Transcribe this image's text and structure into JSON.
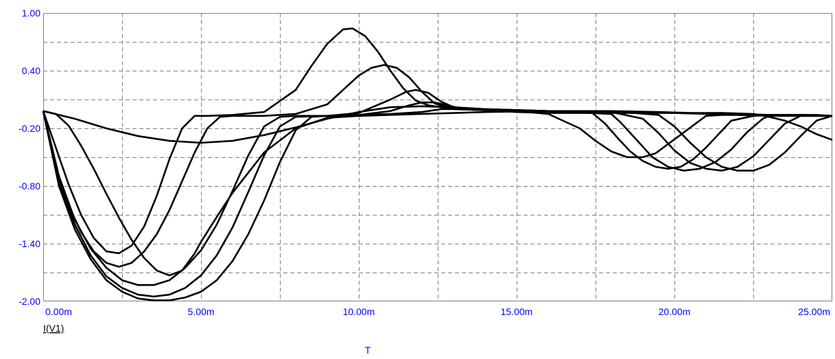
{
  "chart_data": {
    "type": "line",
    "ylabel": "I(V1)",
    "xlabel": "T",
    "xlim": [
      0,
      25
    ],
    "ylim": [
      -2.0,
      1.0
    ],
    "x_unit": "m",
    "x_ticks": [
      0,
      5,
      10,
      15,
      20,
      25
    ],
    "x_tick_labels": [
      "0.00m",
      "5.00m",
      "10.00m",
      "15.00m",
      "20.00m",
      "25.00m"
    ],
    "x_minor_ticks": [
      2.5,
      7.5,
      12.5,
      17.5,
      22.5
    ],
    "y_ticks": [
      1.0,
      0.4,
      -0.2,
      -0.8,
      -1.4,
      -2.0
    ],
    "y_tick_labels": [
      "1.00",
      "0.40",
      "-0.20",
      "-0.80",
      "-1.40",
      "-2.00"
    ],
    "y_minor_ticks": [
      0.7,
      0.1,
      -0.5,
      -1.1,
      -1.7
    ],
    "grid": true,
    "series": [
      {
        "x": [
          0,
          0.4,
          0.8,
          1.2,
          1.6,
          2.0,
          2.4,
          2.8,
          3.2,
          3.6,
          4.0,
          4.4,
          4.8,
          5.2,
          6,
          7,
          8,
          8.5,
          9.0,
          9.5,
          9.8,
          10.2,
          10.6,
          11.0,
          11.4,
          11.8,
          12.2,
          12.6,
          13,
          14,
          15,
          16,
          17,
          17.5,
          18,
          18.5,
          19,
          19.4,
          21,
          21.5,
          22,
          23,
          24,
          25
        ],
        "values": [
          -0.02,
          -0.4,
          -0.78,
          -1.1,
          -1.34,
          -1.48,
          -1.5,
          -1.42,
          -1.22,
          -0.9,
          -0.52,
          -0.2,
          -0.07,
          -0.07,
          -0.06,
          -0.03,
          0.2,
          0.45,
          0.68,
          0.83,
          0.84,
          0.76,
          0.6,
          0.4,
          0.22,
          0.09,
          0.04,
          0.02,
          0.0,
          -0.01,
          -0.02,
          -0.05,
          -0.2,
          -0.33,
          -0.44,
          -0.5,
          -0.5,
          -0.46,
          -0.07,
          -0.06,
          -0.06,
          -0.07,
          -0.07,
          -0.07
        ]
      },
      {
        "x": [
          0,
          0.4,
          0.8,
          1.2,
          1.6,
          2.0,
          2.4,
          2.8,
          3.2,
          3.6,
          4.0,
          4.4,
          4.8,
          5.2,
          5.6,
          6.0,
          6.4,
          7,
          8,
          9,
          10,
          10.4,
          10.8,
          11.2,
          11.6,
          12,
          12.4,
          12.8,
          14,
          16,
          17.4,
          17.8,
          18.2,
          18.6,
          19.0,
          19.4,
          19.8,
          20.2,
          20.6,
          21.0,
          21.8,
          22.5,
          23,
          24,
          25
        ],
        "values": [
          -0.02,
          -0.6,
          -1.0,
          -1.28,
          -1.48,
          -1.6,
          -1.64,
          -1.6,
          -1.48,
          -1.3,
          -1.05,
          -0.75,
          -0.45,
          -0.2,
          -0.08,
          -0.07,
          -0.07,
          -0.07,
          -0.05,
          0.05,
          0.35,
          0.43,
          0.46,
          0.43,
          0.33,
          0.18,
          0.06,
          0.02,
          0.0,
          -0.02,
          -0.04,
          -0.15,
          -0.3,
          -0.44,
          -0.54,
          -0.6,
          -0.62,
          -0.6,
          -0.52,
          -0.4,
          -0.12,
          -0.07,
          -0.06,
          -0.06,
          -0.07
        ]
      },
      {
        "x": [
          0,
          0.5,
          1.0,
          1.5,
          2.0,
          2.5,
          3.0,
          3.5,
          4.0,
          4.5,
          5.0,
          5.5,
          6.0,
          6.5,
          7.0,
          7.5,
          8,
          9,
          10,
          11,
          11.5,
          11.8,
          12.2,
          12.6,
          13,
          14,
          16,
          18,
          18.3,
          18.8,
          19.3,
          19.8,
          20.3,
          20.8,
          21.3,
          21.8,
          22.3,
          22.8,
          23,
          24,
          25
        ],
        "values": [
          -0.02,
          -0.7,
          -1.15,
          -1.45,
          -1.65,
          -1.78,
          -1.83,
          -1.83,
          -1.78,
          -1.65,
          -1.47,
          -1.2,
          -0.85,
          -0.48,
          -0.18,
          -0.08,
          -0.07,
          -0.07,
          -0.04,
          0.1,
          0.18,
          0.2,
          0.17,
          0.08,
          0.02,
          0.0,
          -0.02,
          -0.05,
          -0.14,
          -0.32,
          -0.5,
          -0.6,
          -0.64,
          -0.62,
          -0.55,
          -0.42,
          -0.24,
          -0.1,
          -0.07,
          -0.06,
          -0.07
        ]
      },
      {
        "x": [
          0,
          0.5,
          1.0,
          1.5,
          2.0,
          2.5,
          3.0,
          3.5,
          4.0,
          4.5,
          5.0,
          5.5,
          6.0,
          6.5,
          7.0,
          7.5,
          8.0,
          9,
          10,
          11,
          11.6,
          12.0,
          12.4,
          12.8,
          13.2,
          14,
          16,
          18,
          19,
          19.5,
          20.0,
          20.5,
          21.0,
          21.5,
          22.0,
          22.5,
          23.0,
          23.5,
          24.0,
          25
        ],
        "values": [
          -0.02,
          -0.75,
          -1.2,
          -1.52,
          -1.74,
          -1.86,
          -1.93,
          -1.95,
          -1.93,
          -1.86,
          -1.73,
          -1.52,
          -1.23,
          -0.86,
          -0.48,
          -0.18,
          -0.08,
          -0.07,
          -0.06,
          -0.02,
          0.04,
          0.07,
          0.07,
          0.04,
          0.01,
          0.0,
          -0.02,
          -0.03,
          -0.1,
          -0.25,
          -0.43,
          -0.56,
          -0.62,
          -0.64,
          -0.6,
          -0.49,
          -0.32,
          -0.15,
          -0.07,
          -0.07
        ]
      },
      {
        "x": [
          0,
          0.5,
          1.0,
          1.5,
          2.0,
          2.5,
          3.0,
          3.5,
          4.0,
          4.5,
          5.0,
          5.5,
          6.0,
          6.5,
          7.0,
          7.5,
          8.0,
          8.5,
          9,
          10,
          11,
          12,
          12.6,
          13,
          14,
          16,
          18,
          19.5,
          20,
          20.5,
          21,
          21.5,
          22,
          22.5,
          23,
          23.5,
          24,
          24.5,
          25
        ],
        "values": [
          -0.02,
          -0.8,
          -1.25,
          -1.56,
          -1.78,
          -1.9,
          -1.97,
          -1.99,
          -1.99,
          -1.96,
          -1.9,
          -1.78,
          -1.58,
          -1.3,
          -0.95,
          -0.55,
          -0.22,
          -0.08,
          -0.07,
          -0.06,
          -0.05,
          -0.03,
          0.0,
          0.0,
          -0.01,
          -0.02,
          -0.02,
          -0.06,
          -0.18,
          -0.35,
          -0.5,
          -0.6,
          -0.64,
          -0.64,
          -0.58,
          -0.45,
          -0.28,
          -0.12,
          -0.07
        ]
      },
      {
        "x": [
          0,
          0.4,
          0.8,
          1.2,
          1.6,
          2.0,
          2.4,
          2.8,
          3.2,
          3.6,
          4.0,
          4.4,
          4.8,
          5.0,
          5.6,
          6.0,
          7,
          8,
          9,
          10,
          12,
          14,
          16,
          18,
          19.5,
          20.5,
          21.5,
          22.5,
          23.0,
          23.5,
          24.0,
          24.5,
          25
        ],
        "values": [
          -0.02,
          -0.05,
          -0.17,
          -0.38,
          -0.62,
          -0.88,
          -1.13,
          -1.36,
          -1.55,
          -1.68,
          -1.73,
          -1.68,
          -1.5,
          -1.38,
          -1.07,
          -0.87,
          -0.45,
          -0.2,
          -0.09,
          -0.07,
          -0.05,
          -0.03,
          -0.02,
          -0.02,
          -0.03,
          -0.04,
          -0.04,
          -0.05,
          -0.08,
          -0.12,
          -0.18,
          -0.26,
          -0.32
        ]
      },
      {
        "x": [
          0,
          0.5,
          1.0,
          2.0,
          3.0,
          4.0,
          5.0,
          6.0,
          7.0,
          8.0,
          9.0,
          10.0,
          11.0,
          12.0,
          13.0,
          14.0,
          15.0,
          16.0,
          17.0,
          18.0,
          19.0,
          20.0,
          21.0,
          22.0,
          23.0,
          24.0,
          24.5,
          25
        ],
        "values": [
          -0.02,
          -0.06,
          -0.1,
          -0.2,
          -0.28,
          -0.33,
          -0.35,
          -0.33,
          -0.27,
          -0.19,
          -0.1,
          -0.03,
          0.02,
          0.03,
          0.02,
          -0.01,
          -0.03,
          -0.04,
          -0.04,
          -0.04,
          -0.04,
          -0.04,
          -0.05,
          -0.05,
          -0.06,
          -0.06,
          -0.06,
          -0.07
        ]
      }
    ]
  }
}
